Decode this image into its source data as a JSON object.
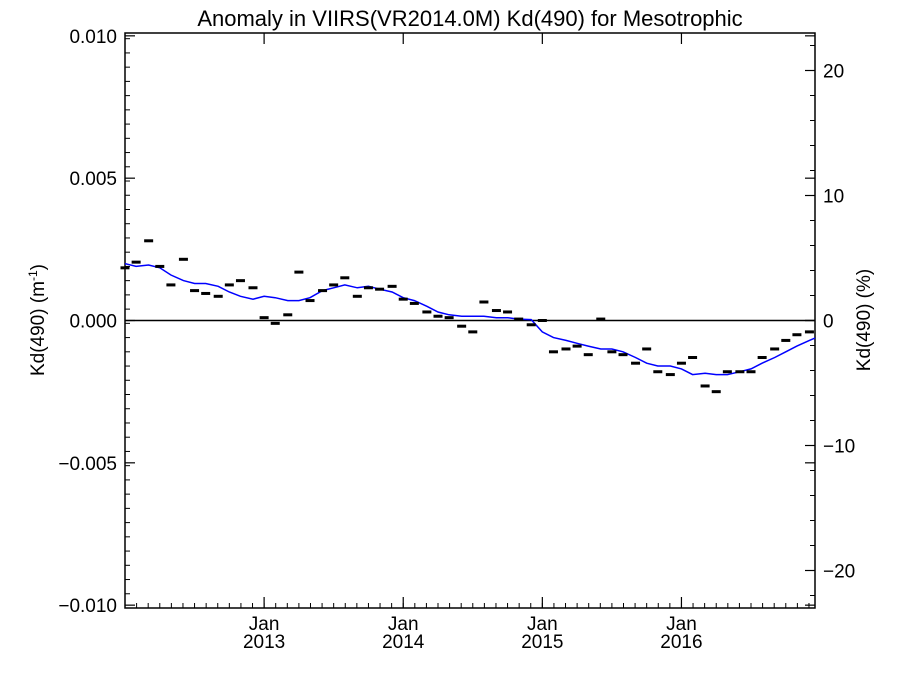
{
  "chart_data": {
    "type": "line",
    "title": "Anomaly in VIIRS(VR2014.0M) Kd(490) for Mesotrophic",
    "ylabel": "Kd(490) (m",
    "ylabel_superscript": "-1",
    "ylabel_suffix": ")",
    "ylabel_right": "Kd(490) (%)",
    "xlabel": "",
    "xlim": [
      2012.0,
      2016.96
    ],
    "ylim": [
      -0.0101,
      0.0101
    ],
    "ylim_right": [
      -23.0,
      23.0
    ],
    "grid": false,
    "zero_line": true,
    "colors": {
      "line": "#0000ff",
      "points": "#000000",
      "axes": "#000000"
    },
    "y_ticks": [
      {
        "value": 0.01,
        "label": "0.010"
      },
      {
        "value": 0.005,
        "label": "0.005"
      },
      {
        "value": 0.0,
        "label": "0.000"
      },
      {
        "value": -0.005,
        "label": "−0.005"
      },
      {
        "value": -0.01,
        "label": "−0.010"
      }
    ],
    "y_ticks_right": [
      {
        "value": 20,
        "label": "20"
      },
      {
        "value": 10,
        "label": "10"
      },
      {
        "value": 0,
        "label": "0"
      },
      {
        "value": -10,
        "label": "−10"
      },
      {
        "value": -20,
        "label": "−20"
      }
    ],
    "x_ticks": [
      {
        "value": 2013.0,
        "month": "Jan",
        "year": "2013"
      },
      {
        "value": 2014.0,
        "month": "Jan",
        "year": "2014"
      },
      {
        "value": 2015.0,
        "month": "Jan",
        "year": "2015"
      },
      {
        "value": 2016.0,
        "month": "Jan",
        "year": "2016"
      }
    ],
    "series": [
      {
        "kind": "monthly-points",
        "x": [
          2012.0,
          2012.08,
          2012.17,
          2012.25,
          2012.33,
          2012.42,
          2012.5,
          2012.58,
          2012.67,
          2012.75,
          2012.83,
          2012.92,
          2013.0,
          2013.08,
          2013.17,
          2013.25,
          2013.33,
          2013.42,
          2013.5,
          2013.58,
          2013.67,
          2013.75,
          2013.83,
          2013.92,
          2014.0,
          2014.08,
          2014.17,
          2014.25,
          2014.33,
          2014.42,
          2014.5,
          2014.58,
          2014.67,
          2014.75,
          2014.83,
          2014.92,
          2015.0,
          2015.08,
          2015.17,
          2015.25,
          2015.33,
          2015.42,
          2015.5,
          2015.58,
          2015.67,
          2015.75,
          2015.83,
          2015.92,
          2016.0,
          2016.08,
          2016.17,
          2016.25,
          2016.33,
          2016.42,
          2016.5,
          2016.58,
          2016.67,
          2016.75,
          2016.83,
          2016.92
        ],
        "y": [
          0.00185,
          0.00205,
          0.0028,
          0.0019,
          0.00125,
          0.00215,
          0.00105,
          0.00095,
          0.00085,
          0.00125,
          0.0014,
          0.00115,
          0.0001,
          -0.0001,
          0.0002,
          0.0017,
          0.0007,
          0.00105,
          0.00125,
          0.0015,
          0.00085,
          0.00115,
          0.0011,
          0.0012,
          0.00075,
          0.0006,
          0.0003,
          0.00015,
          0.0001,
          -0.0002,
          -0.0004,
          0.00065,
          0.00035,
          0.0003,
          5e-05,
          -0.00015,
          0.0,
          -0.0011,
          -0.001,
          -0.0009,
          -0.0012,
          5e-05,
          -0.0011,
          -0.0012,
          -0.0015,
          -0.001,
          -0.0018,
          -0.0019,
          -0.0015,
          -0.0013,
          -0.0023,
          -0.0025,
          -0.0018,
          -0.0018,
          -0.0018,
          -0.0013,
          -0.001,
          -0.0007,
          -0.0005,
          -0.0004
        ]
      },
      {
        "kind": "smoothed-line",
        "x": [
          2012.0,
          2012.08,
          2012.17,
          2012.25,
          2012.33,
          2012.42,
          2012.5,
          2012.58,
          2012.67,
          2012.75,
          2012.83,
          2012.92,
          2013.0,
          2013.08,
          2013.17,
          2013.25,
          2013.33,
          2013.42,
          2013.5,
          2013.58,
          2013.67,
          2013.75,
          2013.83,
          2013.92,
          2014.0,
          2014.08,
          2014.17,
          2014.25,
          2014.33,
          2014.42,
          2014.5,
          2014.58,
          2014.67,
          2014.75,
          2014.83,
          2014.92,
          2015.0,
          2015.08,
          2015.17,
          2015.25,
          2015.33,
          2015.42,
          2015.5,
          2015.58,
          2015.67,
          2015.75,
          2015.83,
          2015.92,
          2016.0,
          2016.08,
          2016.17,
          2016.25,
          2016.33,
          2016.42,
          2016.5,
          2016.58,
          2016.67,
          2016.75,
          2016.83,
          2016.92,
          2016.96
        ],
        "y": [
          0.002,
          0.0019,
          0.00195,
          0.00185,
          0.0016,
          0.0014,
          0.0013,
          0.0013,
          0.0012,
          0.001,
          0.00085,
          0.00075,
          0.00085,
          0.0008,
          0.0007,
          0.0007,
          0.0008,
          0.00105,
          0.00115,
          0.00125,
          0.00115,
          0.0012,
          0.0011,
          0.001,
          0.0008,
          0.0007,
          0.0005,
          0.0003,
          0.0002,
          0.00015,
          0.00015,
          0.00015,
          0.0001,
          0.0001,
          5e-05,
          3e-05,
          -0.0004,
          -0.0006,
          -0.0007,
          -0.0008,
          -0.0009,
          -0.001,
          -0.001,
          -0.0011,
          -0.0013,
          -0.0015,
          -0.0016,
          -0.0016,
          -0.0017,
          -0.0019,
          -0.00185,
          -0.0019,
          -0.0019,
          -0.0018,
          -0.0017,
          -0.0015,
          -0.0013,
          -0.0011,
          -0.0009,
          -0.0007,
          -0.00062
        ]
      }
    ]
  }
}
